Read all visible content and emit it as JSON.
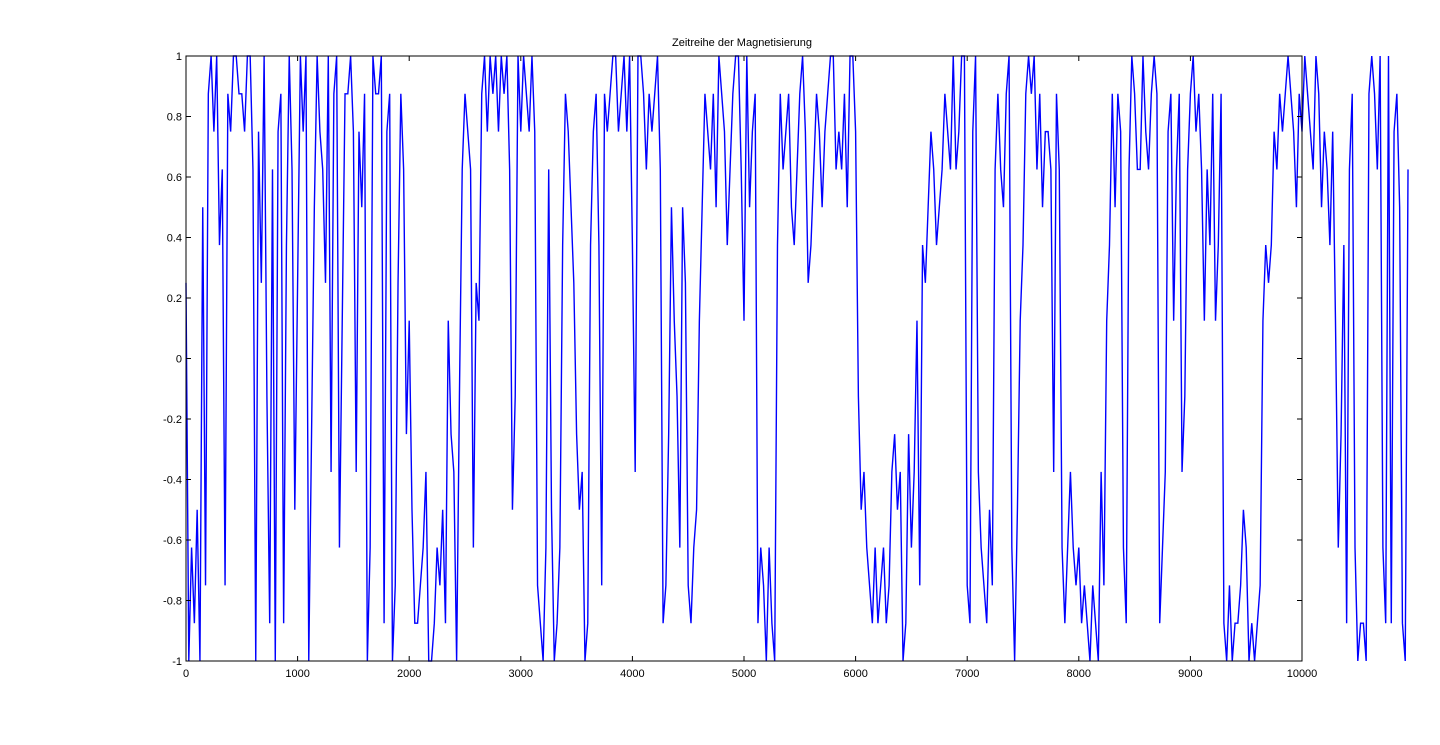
{
  "chart_data": {
    "type": "line",
    "title": "Zeitreihe der Magnetisierung",
    "xlabel": "",
    "ylabel": "",
    "xlim": [
      0,
      10000
    ],
    "ylim": [
      -1,
      1
    ],
    "x_ticks": [
      0,
      1000,
      2000,
      3000,
      4000,
      5000,
      6000,
      7000,
      8000,
      9000,
      10000
    ],
    "x_tick_labels": [
      "0",
      "1000",
      "2000",
      "3000",
      "4000",
      "5000",
      "6000",
      "7000",
      "8000",
      "9000",
      "10000"
    ],
    "y_ticks": [
      -1,
      -0.8,
      -0.6,
      -0.4,
      -0.2,
      0,
      0.2,
      0.4,
      0.6,
      0.8,
      1
    ],
    "y_tick_labels": [
      "-1",
      "-0.8",
      "-0.6",
      "-0.4",
      "-0.2",
      "0",
      "0.2",
      "0.4",
      "0.6",
      "0.8",
      "1"
    ],
    "grid": false,
    "legend": false,
    "series": [
      {
        "color": "#0000ff",
        "sampling": "values every 25 steps; the plot resolves only the envelope of the dense fluctuation, values in multiples of 0.125",
        "x_start": 0,
        "x_step": 25,
        "values": [
          0.25,
          -1,
          -0.625,
          -0.875,
          -0.5,
          -1,
          0.5,
          -0.75,
          0.875,
          1,
          0.75,
          1,
          0.375,
          0.625,
          -0.75,
          0.875,
          0.75,
          1,
          1,
          0.875,
          0.875,
          0.75,
          1,
          1,
          0.625,
          -1,
          0.75,
          0.25,
          1,
          -0.125,
          -0.875,
          0.625,
          -1,
          0.75,
          0.875,
          -0.875,
          0.375,
          1,
          0.625,
          -0.5,
          0.25,
          1,
          0.75,
          1,
          -1,
          -0.25,
          0.5,
          1,
          0.75,
          0.625,
          0.25,
          1,
          -0.375,
          0.875,
          1,
          -0.625,
          0.125,
          0.875,
          0.875,
          1,
          0.75,
          -0.375,
          0.75,
          0.5,
          0.875,
          -1,
          -0.625,
          1,
          0.875,
          0.875,
          1,
          -0.875,
          0.75,
          0.875,
          -1,
          -0.75,
          0.25,
          0.875,
          0.625,
          -0.25,
          0.125,
          -0.5,
          -0.875,
          -0.875,
          -0.75,
          -0.625,
          -0.375,
          -1,
          -1,
          -0.875,
          -0.625,
          -0.75,
          -0.5,
          -0.875,
          0.125,
          -0.25,
          -0.375,
          -1,
          -0.125,
          0.625,
          0.875,
          0.75,
          0.625,
          -0.625,
          0.25,
          0.125,
          0.875,
          1,
          0.75,
          1,
          0.875,
          1,
          0.75,
          1,
          0.875,
          1,
          0.625,
          -0.5,
          -0.125,
          1,
          0.75,
          1,
          0.875,
          0.75,
          1,
          0.75,
          -0.75,
          -0.875,
          -1,
          -0.625,
          0.625,
          -0.5,
          -1,
          -0.875,
          -0.625,
          0.375,
          0.875,
          0.75,
          0.5,
          0.25,
          -0.25,
          -0.5,
          -0.375,
          -1,
          -0.875,
          0.375,
          0.75,
          0.875,
          0.375,
          -0.75,
          0.875,
          0.75,
          0.875,
          1,
          1,
          0.75,
          0.875,
          1,
          0.75,
          1,
          0.375,
          -0.375,
          1,
          1,
          0.875,
          0.625,
          0.875,
          0.75,
          0.875,
          1,
          0.625,
          -0.875,
          -0.75,
          -0.25,
          0.5,
          0.125,
          -0.125,
          -0.625,
          0.5,
          0.25,
          -0.75,
          -0.875,
          -0.625,
          -0.5,
          0.125,
          0.5,
          0.875,
          0.75,
          0.625,
          0.875,
          0.5,
          1,
          0.875,
          0.75,
          0.375,
          0.625,
          0.875,
          1,
          1,
          0.625,
          0.125,
          1,
          0.5,
          0.75,
          0.875,
          -0.875,
          -0.625,
          -0.75,
          -1,
          -0.625,
          -0.875,
          -1,
          0.375,
          0.875,
          0.625,
          0.75,
          0.875,
          0.5,
          0.375,
          0.625,
          0.875,
          1,
          0.75,
          0.25,
          0.375,
          0.625,
          0.875,
          0.75,
          0.5,
          0.75,
          0.875,
          1,
          1,
          0.625,
          0.75,
          0.625,
          0.875,
          0.5,
          1,
          1,
          0.75,
          -0.125,
          -0.5,
          -0.375,
          -0.625,
          -0.75,
          -0.875,
          -0.625,
          -0.875,
          -0.75,
          -0.625,
          -0.875,
          -0.75,
          -0.375,
          -0.25,
          -0.5,
          -0.375,
          -1,
          -0.875,
          -0.25,
          -0.625,
          -0.375,
          0.125,
          -0.75,
          0.375,
          0.25,
          0.5,
          0.75,
          0.625,
          0.375,
          0.5,
          0.625,
          0.875,
          0.75,
          0.625,
          1,
          0.625,
          0.75,
          1,
          1,
          -0.75,
          -0.875,
          0.75,
          1,
          -0.375,
          -0.625,
          -0.75,
          -0.875,
          -0.5,
          -0.75,
          0.625,
          0.875,
          0.625,
          0.5,
          0.875,
          1,
          -0.625,
          -1,
          -0.5,
          0.125,
          0.375,
          0.875,
          1,
          0.875,
          1,
          0.625,
          0.875,
          0.5,
          0.75,
          0.75,
          0.625,
          -0.375,
          0.875,
          0.625,
          -0.625,
          -0.875,
          -0.625,
          -0.375,
          -0.625,
          -0.75,
          -0.625,
          -0.875,
          -0.75,
          -0.875,
          -1,
          -0.75,
          -0.875,
          -1,
          -0.375,
          -0.75,
          0.125,
          0.375,
          0.875,
          0.5,
          0.875,
          0.75,
          -0.625,
          -0.875,
          0.625,
          1,
          0.875,
          0.625,
          0.625,
          1,
          0.75,
          0.625,
          0.875,
          1,
          0.875,
          -0.875,
          -0.625,
          -0.375,
          0.75,
          0.875,
          0.125,
          0.625,
          0.875,
          -0.375,
          -0.125,
          0.625,
          0.875,
          1,
          0.75,
          0.875,
          0.625,
          0.125,
          0.625,
          0.375,
          0.875,
          0.125,
          0.375,
          0.875,
          -0.875,
          -1,
          -0.75,
          -1,
          -0.875,
          -0.875,
          -0.75,
          -0.5,
          -0.625,
          -1,
          -0.875,
          -1,
          -0.875,
          -0.75,
          0.125,
          0.375,
          0.25,
          0.375,
          0.75,
          0.625,
          0.875,
          0.75,
          0.875,
          1,
          0.875,
          0.75,
          0.5,
          0.875,
          0.75,
          1,
          0.875,
          0.75,
          0.625,
          1,
          0.875,
          0.5,
          0.75,
          0.625,
          0.375,
          0.75,
          0.125,
          -0.625,
          -0.25,
          0.375,
          -0.875,
          0.625,
          0.875,
          -0.625,
          -1,
          -0.875,
          -0.875,
          -1,
          0.875,
          1,
          0.875,
          0.625,
          1,
          -0.625,
          -0.875,
          1,
          -0.875,
          0.75,
          0.875,
          0.5,
          -0.875,
          -1,
          0.625
        ]
      }
    ]
  }
}
